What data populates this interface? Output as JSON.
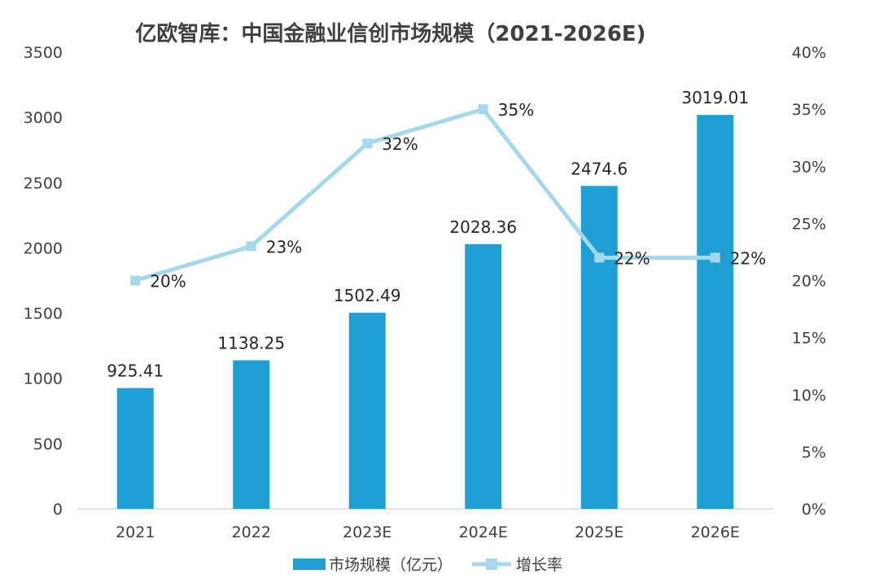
{
  "chart_data": {
    "type": "bar",
    "title": "亿欧智库：中国金融业信创市场规模（2021-2026E)",
    "categories": [
      "2021",
      "2022",
      "2023E",
      "2024E",
      "2025E",
      "2026E"
    ],
    "series": [
      {
        "name": "市场规模（亿元）",
        "type": "bar",
        "axis": "left",
        "values": [
          925.41,
          1138.25,
          1502.49,
          2028.36,
          2474.6,
          3019.01
        ],
        "labels": [
          "925.41",
          "1138.25",
          "1502.49",
          "2028.36",
          "2474.6",
          "3019.01"
        ],
        "color": "#1f9fd4"
      },
      {
        "name": "增长率",
        "type": "line",
        "axis": "right",
        "values": [
          20,
          23,
          32,
          35,
          22,
          22
        ],
        "labels": [
          "20%",
          "23%",
          "32%",
          "35%",
          "22%",
          "22%"
        ],
        "color": "#a6d8ec"
      }
    ],
    "y_left": {
      "min": 0,
      "max": 3500,
      "ticks": [
        "0",
        "500",
        "1000",
        "1500",
        "2000",
        "2500",
        "3000",
        "3500"
      ]
    },
    "y_right": {
      "min": 0,
      "max": 40,
      "ticks": [
        "0%",
        "5%",
        "10%",
        "15%",
        "20%",
        "25%",
        "30%",
        "35%",
        "40%"
      ]
    },
    "grid": false,
    "legend_position": "bottom"
  }
}
